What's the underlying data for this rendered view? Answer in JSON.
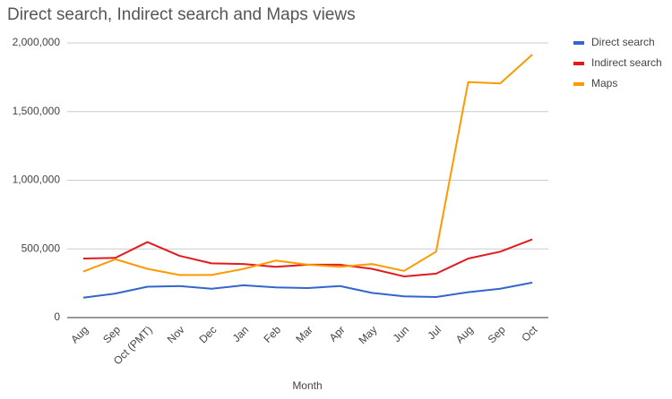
{
  "chart_data": {
    "type": "line",
    "title": "Direct search, Indirect search and Maps views",
    "x_label": "Month",
    "categories": [
      "Aug",
      "Sep",
      "Oct (PMT)",
      "Nov",
      "Dec",
      "Jan",
      "Feb",
      "Mar",
      "Apr",
      "May",
      "Jun",
      "Jul",
      "Aug",
      "Sep",
      "Oct"
    ],
    "series": [
      {
        "name": "Direct search",
        "color": "#3366cc",
        "values": [
          145000,
          175000,
          225000,
          230000,
          210000,
          235000,
          220000,
          215000,
          230000,
          180000,
          155000,
          150000,
          185000,
          210000,
          255000
        ]
      },
      {
        "name": "Indirect search",
        "color": "#e31a1c",
        "values": [
          430000,
          435000,
          550000,
          450000,
          395000,
          390000,
          370000,
          385000,
          385000,
          355000,
          300000,
          320000,
          430000,
          480000,
          570000
        ]
      },
      {
        "name": "Maps",
        "color": "#ff9900",
        "values": [
          335000,
          425000,
          355000,
          310000,
          310000,
          355000,
          415000,
          385000,
          370000,
          390000,
          340000,
          480000,
          1715000,
          1705000,
          1915000
        ]
      }
    ],
    "ylim": [
      0,
      2000000
    ],
    "yticks": [
      0,
      {
        "value": 500000,
        "label": "500,000"
      },
      {
        "value": 1000000,
        "label": "1,000,000"
      },
      {
        "value": 1500000,
        "label": "1,500,000"
      },
      {
        "value": 2000000,
        "label": "2,000,000"
      }
    ],
    "grid": true,
    "legend": "right"
  }
}
